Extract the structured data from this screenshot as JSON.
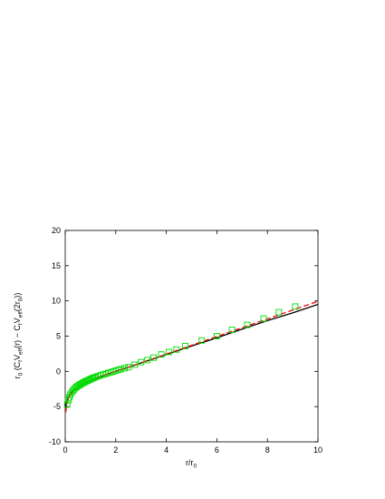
{
  "chart_data": {
    "type": "scatter",
    "xlabel_main": "r/r",
    "xlabel_sub": "0",
    "ylabel_parts": [
      {
        "t": "r",
        "sub": false
      },
      {
        "t": "0",
        "sub": true
      },
      {
        "t": " (C",
        "sub": false
      },
      {
        "t": "f",
        "sub": true
      },
      {
        "t": "V",
        "sub": false
      },
      {
        "t": "eff",
        "sub": true
      },
      {
        "t": "(r) − C",
        "sub": false
      },
      {
        "t": "f",
        "sub": true
      },
      {
        "t": "V",
        "sub": false
      },
      {
        "t": "eff",
        "sub": true
      },
      {
        "t": "(2r",
        "sub": false
      },
      {
        "t": "0",
        "sub": true
      },
      {
        "t": "))",
        "sub": false
      }
    ],
    "xlim": [
      0,
      10
    ],
    "ylim": [
      -10,
      20
    ],
    "xticks": [
      0,
      2,
      4,
      6,
      8,
      10
    ],
    "yticks": [
      -10,
      -5,
      0,
      5,
      10,
      15,
      20
    ],
    "grid": false,
    "series": [
      {
        "kind": "line",
        "color": "#000000",
        "dash": "",
        "x": [
          0.02,
          0.05,
          0.1,
          0.2,
          0.3,
          0.5,
          0.75,
          1.0,
          1.5,
          2.0,
          2.5,
          3.0,
          4.0,
          5.0,
          6.0,
          7.0,
          8.0,
          9.0,
          10.0
        ],
        "y": [
          -5.0,
          -4.4,
          -3.9,
          -3.2,
          -2.75,
          -2.2,
          -1.7,
          -1.3,
          -0.6,
          0.0,
          0.6,
          1.2,
          2.4,
          3.6,
          4.75,
          6.0,
          7.2,
          8.3,
          9.5
        ]
      },
      {
        "kind": "line",
        "color": "#ff0000",
        "dash": "6,3",
        "x": [
          0.02,
          0.05,
          0.1,
          0.2,
          0.3,
          0.5,
          0.75,
          1.0,
          1.5,
          2.0,
          2.5,
          3.0,
          4.0,
          5.0,
          6.0,
          7.0,
          8.0,
          9.0,
          10.0
        ],
        "y": [
          -5.8,
          -4.8,
          -4.1,
          -3.35,
          -2.85,
          -2.25,
          -1.75,
          -1.35,
          -0.6,
          0.0,
          0.6,
          1.2,
          2.45,
          3.7,
          4.95,
          6.2,
          7.45,
          8.7,
          9.95
        ]
      },
      {
        "kind": "markers",
        "color": "#00dd00",
        "marker": "square",
        "x": [
          0.08,
          0.12,
          0.16,
          0.2,
          0.25,
          0.3,
          0.35,
          0.4,
          0.45,
          0.5,
          0.55,
          0.6,
          0.65,
          0.7,
          0.75,
          0.8,
          0.85,
          0.9,
          0.95,
          1.0,
          1.05,
          1.1,
          1.15,
          1.2,
          1.3,
          1.4,
          1.5,
          1.6,
          1.7,
          1.8,
          1.9,
          2.0,
          2.1,
          2.2,
          2.35,
          2.5,
          2.75,
          3.0,
          3.25,
          3.5,
          3.8,
          4.1,
          4.4,
          4.75,
          5.4,
          6.0,
          6.6,
          7.2,
          7.85,
          8.45,
          9.1
        ],
        "y": [
          -4.7,
          -4.1,
          -3.7,
          -3.3,
          -3.0,
          -2.75,
          -2.55,
          -2.35,
          -2.2,
          -2.05,
          -1.95,
          -1.85,
          -1.75,
          -1.65,
          -1.55,
          -1.45,
          -1.35,
          -1.28,
          -1.2,
          -1.1,
          -1.02,
          -0.95,
          -0.88,
          -0.8,
          -0.68,
          -0.56,
          -0.45,
          -0.34,
          -0.23,
          -0.12,
          -0.01,
          0.1,
          0.2,
          0.3,
          0.45,
          0.6,
          0.95,
          1.3,
          1.6,
          1.95,
          2.4,
          2.75,
          3.1,
          3.6,
          4.4,
          5.0,
          5.9,
          6.6,
          7.5,
          8.4,
          9.2
        ]
      }
    ]
  }
}
